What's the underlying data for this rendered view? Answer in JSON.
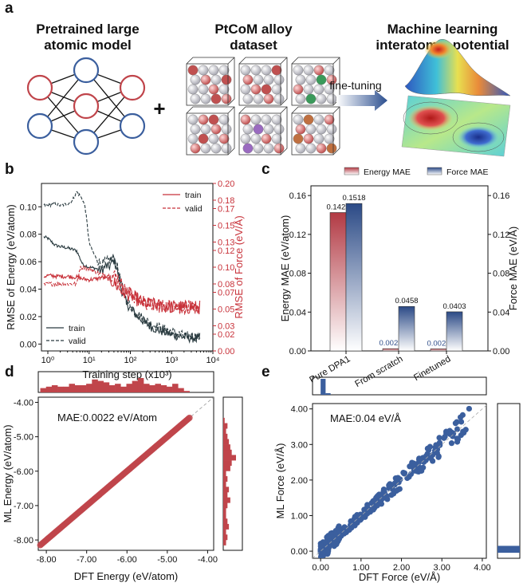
{
  "panel_a": {
    "label": "a",
    "model_title_line1": "Pretrained large",
    "model_title_line2": "atomic model",
    "dataset_title_line1": "PtCoM alloy",
    "dataset_title_line2": "dataset",
    "mlip_title_line1": "Machine learning",
    "mlip_title_line2": "interatomic potential",
    "plus": "+",
    "finetune_label": "fine-tuning"
  },
  "chart_data": [
    {
      "panel": "b",
      "type": "line",
      "xlabel": "Training step (x10³)",
      "ylabel_left": "RMSE of Energy (eV/atom)",
      "ylabel_right": "RMSE of Force (eV/Å)",
      "xscale": "log",
      "xlim": [
        0.7,
        10000
      ],
      "xticks": [
        {
          "v": 1,
          "l": "10⁰"
        },
        {
          "v": 10,
          "l": "10¹"
        },
        {
          "v": 100,
          "l": "10²"
        },
        {
          "v": 1000,
          "l": "10³"
        },
        {
          "v": 10000,
          "l": "10⁴"
        }
      ],
      "ylim_left": [
        -0.005,
        0.117
      ],
      "yticks_left": [
        "0.00",
        "0.02",
        "0.04",
        "0.06",
        "0.08",
        "0.10"
      ],
      "ylim_right": [
        0,
        0.2
      ],
      "yticks_right": [
        "0.00",
        "0.02",
        "0.03",
        "0.05",
        "0.07",
        "0.08",
        "0.10",
        "0.12",
        "0.13",
        "0.15",
        "0.17",
        "0.18",
        "0.20"
      ],
      "legend_force": [
        "train",
        "valid"
      ],
      "legend_energy": [
        "train",
        "valid"
      ],
      "series": [
        {
          "name": "Energy train",
          "axis": "left",
          "color": "#2a3b40",
          "dash": false,
          "x": [
            0.8,
            1,
            1.5,
            2,
            3,
            5,
            7,
            10,
            15,
            20,
            25,
            30,
            40,
            50,
            60,
            80,
            100,
            150,
            200,
            300,
            500,
            1000,
            2000,
            5000
          ],
          "y": [
            0.078,
            0.077,
            0.072,
            0.071,
            0.07,
            0.068,
            0.058,
            0.056,
            0.055,
            0.053,
            0.057,
            0.056,
            0.061,
            0.052,
            0.04,
            0.03,
            0.026,
            0.02,
            0.017,
            0.013,
            0.01,
            0.007,
            0.005,
            0.004
          ]
        },
        {
          "name": "Energy valid",
          "axis": "left",
          "color": "#2a3b40",
          "dash": true,
          "x": [
            0.8,
            1,
            1.5,
            2,
            3,
            4,
            5,
            6,
            7,
            8,
            9,
            10,
            12,
            15,
            20,
            25,
            30,
            40,
            50,
            60,
            80,
            100,
            150,
            200,
            300,
            500,
            1000,
            2000,
            5000
          ],
          "y": [
            0.101,
            0.101,
            0.102,
            0.101,
            0.102,
            0.105,
            0.111,
            0.108,
            0.105,
            0.1,
            0.087,
            0.074,
            0.068,
            0.062,
            0.058,
            0.06,
            0.061,
            0.063,
            0.055,
            0.044,
            0.032,
            0.028,
            0.022,
            0.019,
            0.015,
            0.012,
            0.009,
            0.006,
            0.005
          ]
        },
        {
          "name": "Force train",
          "axis": "right",
          "color": "#c8323a",
          "dash": false,
          "x": [
            0.8,
            1,
            2,
            3,
            5,
            7,
            10,
            15,
            20,
            30,
            40,
            50,
            70,
            100,
            150,
            200,
            300,
            500,
            1000,
            2000,
            5000
          ],
          "y": [
            0.089,
            0.09,
            0.089,
            0.089,
            0.088,
            0.086,
            0.085,
            0.086,
            0.088,
            0.086,
            0.082,
            0.076,
            0.07,
            0.067,
            0.061,
            0.058,
            0.055,
            0.054,
            0.053,
            0.052,
            0.052
          ]
        },
        {
          "name": "Force valid",
          "axis": "right",
          "color": "#c8323a",
          "dash": true,
          "x": [
            0.8,
            1,
            2,
            3,
            5,
            6,
            7,
            10,
            15,
            20,
            30,
            40,
            50,
            70,
            100,
            150,
            200,
            300,
            500,
            1000,
            2000,
            5000
          ],
          "y": [
            0.079,
            0.08,
            0.08,
            0.08,
            0.08,
            0.099,
            0.1,
            0.098,
            0.094,
            0.091,
            0.09,
            0.09,
            0.087,
            0.074,
            0.068,
            0.062,
            0.058,
            0.056,
            0.054,
            0.053,
            0.052,
            0.052
          ]
        }
      ]
    },
    {
      "panel": "c",
      "type": "bar",
      "categories": [
        "Pure DPA1",
        "From scratch",
        "Finetuned"
      ],
      "series": [
        {
          "name": "Energy MAE",
          "axis": "left",
          "values": [
            0.1425,
            0.0023,
            0.0021
          ],
          "labels": [
            "0.1425",
            "0.0023",
            "0.0021"
          ],
          "color": "#c0454b"
        },
        {
          "name": "Force MAE",
          "axis": "right",
          "values": [
            0.1518,
            0.0458,
            0.0403
          ],
          "labels": [
            "0.1518",
            "0.0458",
            "0.0403"
          ],
          "color": "#304e8a"
        }
      ],
      "ylabel_left": "Energy MAE (eV/atom)",
      "ylabel_right": "Force MAE (eV/Å)",
      "ylim": [
        0,
        0.17
      ],
      "yticks": [
        "0.00",
        "0.04",
        "0.08",
        "0.12",
        "0.16"
      ]
    },
    {
      "panel": "d",
      "type": "scatter",
      "xlabel": "DFT Energy (eV/atom)",
      "ylabel": "ML Energy (eV/atom)",
      "xlim": [
        -8.2,
        -3.85
      ],
      "ylim": [
        -8.3,
        -3.85
      ],
      "xticks": [
        "-8.00",
        "-7.00",
        "-6.00",
        "-5.00",
        "-4.00"
      ],
      "yticks": [
        "-8.00",
        "-7.00",
        "-6.00",
        "-5.00",
        "-4.00"
      ],
      "annotation": "MAE:0.0022 eV/Atom",
      "color": "#c0454b",
      "x_range": [
        -8.15,
        -4.45
      ],
      "hist_top": [
        3,
        4,
        5,
        4,
        4,
        6,
        5,
        5,
        6,
        9,
        8,
        7,
        5,
        6,
        4,
        6,
        8,
        10,
        6,
        5,
        6,
        5,
        4,
        6,
        3,
        1
      ],
      "hist_right": [
        2,
        3,
        2,
        4,
        3,
        2,
        2,
        3,
        5,
        3,
        4,
        2,
        3,
        2,
        5,
        6,
        9,
        6,
        5,
        4,
        3,
        2,
        3,
        1
      ]
    },
    {
      "panel": "e",
      "type": "scatter",
      "xlabel": "DFT Force (eV/Å)",
      "ylabel": "ML Force (eV/Å)",
      "xlim": [
        -0.2,
        4.1
      ],
      "ylim": [
        -0.2,
        4.15
      ],
      "xticks": [
        "0.00",
        "1.00",
        "2.00",
        "3.00",
        "4.00"
      ],
      "yticks": [
        "0.00",
        "1.00",
        "2.00",
        "3.00",
        "4.00"
      ],
      "annotation": "MAE:0.04 eV/Å",
      "color": "#3b5f9e",
      "x_range": [
        0,
        3.7
      ],
      "hist_top": [
        10,
        1
      ],
      "hist_right": [
        2
      ]
    }
  ],
  "labels": {
    "b": "b",
    "c": "c",
    "d": "d",
    "e": "e"
  }
}
